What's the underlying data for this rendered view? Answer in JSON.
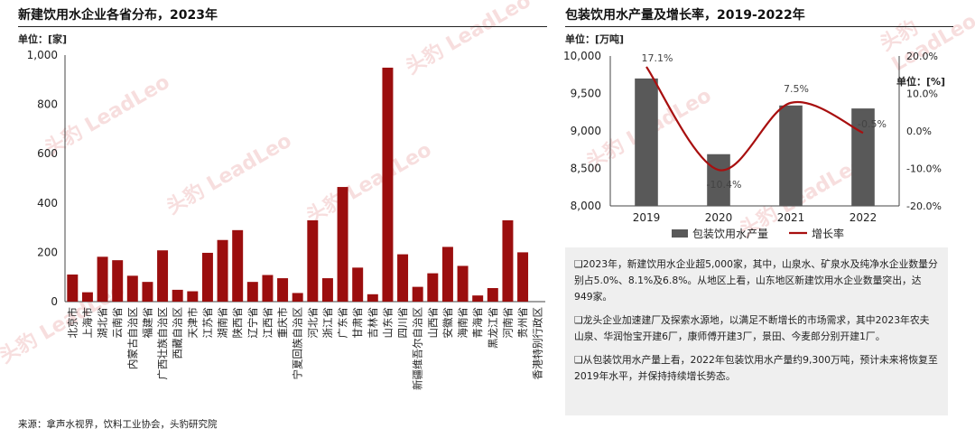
{
  "left_title": "新建饮用水企业各省分布，2023年",
  "left_unit": "单位：[家]",
  "right_title": "包装饮用水产量及增长率，2019-2022年",
  "right_unit_left": "单位：[万吨]",
  "right_unit_right": "单位：[%]",
  "watermark": "头豹 LeadLeo",
  "colors": {
    "bar_red": "#9b0e0e",
    "bar_gray": "#595959",
    "line_red": "#a80f0f"
  },
  "chart_data": [
    {
      "type": "bar",
      "title": "新建饮用水企业各省分布，2023年",
      "ylabel": "单位：[家]",
      "ylim": [
        0,
        1000
      ],
      "yticks": [
        "0",
        "200",
        "400",
        "600",
        "800",
        "1,000"
      ],
      "ytick_values": [
        0,
        200,
        400,
        600,
        800,
        1000
      ],
      "categories": [
        "北京市",
        "上海市",
        "湖北省",
        "云南省",
        "内蒙古自治区",
        "福建省",
        "广西壮族自治区",
        "西藏自治区",
        "天津市",
        "江苏省",
        "湖南省",
        "陕西省",
        "辽宁省",
        "江西省",
        "重庆市",
        "宁夏回族自治区",
        "河北省",
        "浙江省",
        "广东省",
        "甘肃省",
        "吉林省",
        "山东省",
        "四川省",
        "新疆维吾尔自治区",
        "山西省",
        "安徽省",
        "海南省",
        "青海省",
        "黑龙江省",
        "河南省",
        "贵州省",
        "香港特别行政区"
      ],
      "values": [
        110,
        38,
        182,
        168,
        105,
        80,
        208,
        48,
        42,
        198,
        250,
        290,
        80,
        108,
        95,
        35,
        330,
        95,
        465,
        138,
        30,
        949,
        192,
        60,
        115,
        222,
        145,
        25,
        55,
        330,
        200,
        0
      ]
    },
    {
      "type": "bar+line",
      "title": "包装饮用水产量及增长率，2019-2022年",
      "categories": [
        "2019",
        "2020",
        "2021",
        "2022"
      ],
      "series": [
        {
          "name": "包装饮用水产量",
          "type": "bar",
          "axis": "left",
          "values": [
            9700,
            8690,
            9340,
            9300
          ]
        },
        {
          "name": "增长率",
          "type": "line",
          "axis": "right",
          "values": [
            17.1,
            -10.4,
            7.5,
            -0.5
          ],
          "labels": [
            "17.1%",
            "-10.4%",
            "7.5%",
            "-0.5%"
          ]
        }
      ],
      "ylim_left": [
        8000,
        10000
      ],
      "yticks_left": [
        "8,000",
        "8,500",
        "9,000",
        "9,500",
        "10,000"
      ],
      "ytick_values_left": [
        8000,
        8500,
        9000,
        9500,
        10000
      ],
      "ylim_right": [
        -20,
        20
      ],
      "yticks_right": [
        "-20.0%",
        "-10.0%",
        "0.0%",
        "10.0%",
        "20.0%"
      ],
      "ytick_values_right": [
        -20,
        -10,
        0,
        10,
        20
      ],
      "legend_position": "bottom"
    }
  ],
  "notes": [
    "❑2023年，新建饮用水企业超5,000家，其中，山泉水、矿泉水及纯净水企业数量分别占5.0%、8.1%及6.8%。从地区上看，山东地区新建饮用水企业数量突出，达949家。",
    "❑龙头企业加速建厂及探索水源地，以满足不断增长的市场需求，其中2023年农夫山泉、华润怡宝开建6厂，康师傅开建3厂，景田、今麦郎分别开建1厂。",
    "❑从包装饮用水产量上看，2022年包装饮用水产量约9,300万吨，预计未来将恢复至2019年水平，并保持持续增长势态。"
  ],
  "source": "来源：拿声水视界，饮料工业协会，头豹研究院"
}
